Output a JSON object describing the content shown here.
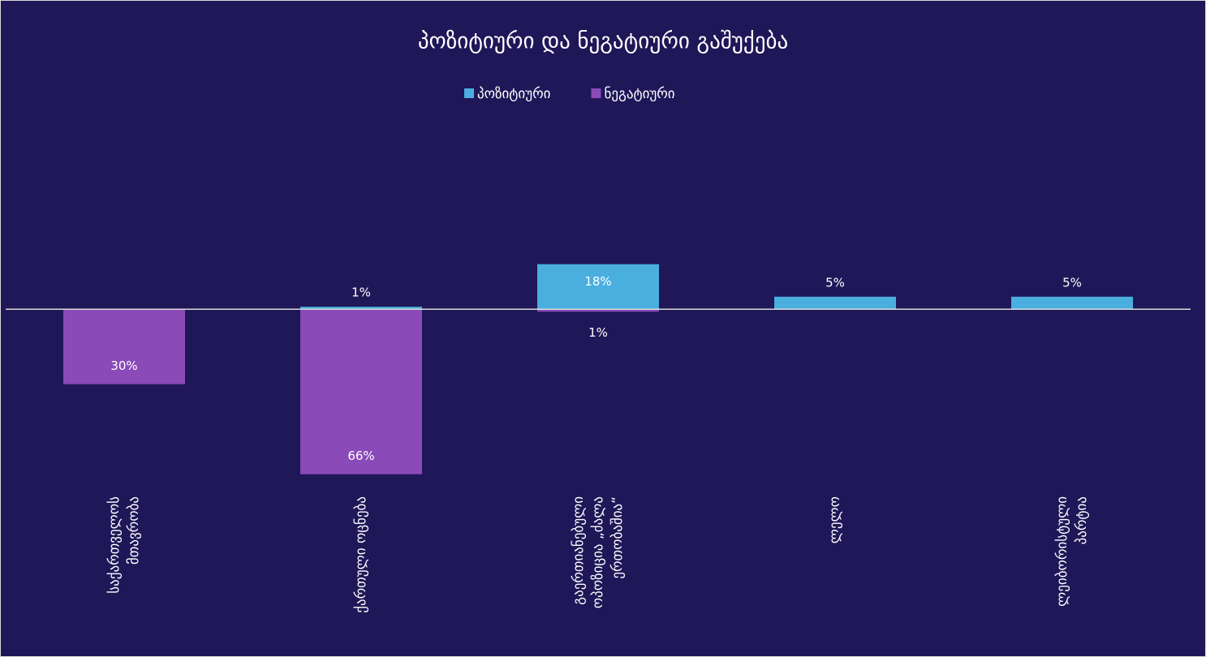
{
  "chart_data": {
    "type": "bar",
    "title": "პოზიტიური და ნეგატიური გაშუქება",
    "categories": [
      "საქართველოს მთავრობა",
      "ქართული ოცნება",
      "გაერთიანებული ოპოზიცია „ძალა ერთობაშია“",
      "ლელო",
      "ლეიბორისტული პარტია"
    ],
    "series": [
      {
        "name": "პოზიტიური",
        "color": "#4aafdf",
        "values": [
          null,
          1,
          18,
          5,
          5
        ],
        "value_labels": [
          null,
          "1%",
          "18%",
          "5%",
          "5%"
        ]
      },
      {
        "name": "ნეგატიური",
        "color": "#8a4ab8",
        "values": [
          -30,
          -66,
          -1,
          null,
          null
        ],
        "value_labels": [
          "30%",
          "66%",
          "1%",
          null,
          null
        ]
      }
    ],
    "ylim": [
      -70,
      75
    ],
    "legend": "top"
  }
}
